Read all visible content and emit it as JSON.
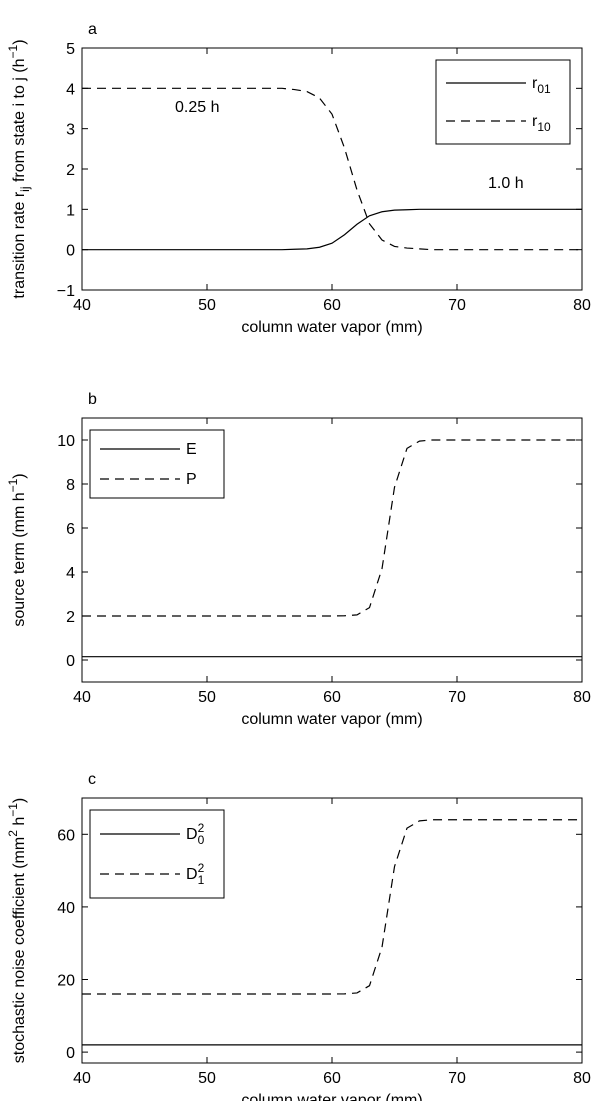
{
  "chart_data": [
    {
      "type": "line",
      "panel_label": "a",
      "xlabel": "column water vapor (mm)",
      "ylabel": [
        {
          "text": "transition rate r"
        },
        {
          "text": "ij",
          "shift": "sub"
        },
        {
          "text": " from state i to j (h"
        },
        {
          "text": "−1",
          "shift": "sup"
        },
        {
          "text": ")"
        }
      ],
      "x": [
        40,
        50,
        55,
        56,
        57,
        58,
        59,
        60,
        61,
        62,
        63,
        64,
        65,
        66,
        67,
        68,
        70,
        80
      ],
      "series": [
        {
          "name": [
            {
              "text": "r"
            },
            {
              "text": "01",
              "shift": "sub"
            }
          ],
          "color": "#000000",
          "dash": "solid",
          "values": [
            0,
            0,
            0,
            0,
            0.01,
            0.02,
            0.06,
            0.16,
            0.37,
            0.63,
            0.84,
            0.94,
            0.98,
            0.99,
            1,
            1,
            1,
            1
          ]
        },
        {
          "name": [
            {
              "text": "r"
            },
            {
              "text": "10",
              "shift": "sub"
            }
          ],
          "color": "#000000",
          "dash": "dashed",
          "values": [
            4,
            4,
            4,
            4,
            3.97,
            3.92,
            3.76,
            3.36,
            2.52,
            1.48,
            0.64,
            0.24,
            0.08,
            0.04,
            0.02,
            0,
            0,
            0
          ]
        }
      ],
      "xlim": [
        40,
        80
      ],
      "ylim": [
        -1,
        5
      ],
      "xticks": [
        40,
        50,
        60,
        70,
        80
      ],
      "yticks": [
        {
          "value": -1,
          "label": "−1"
        },
        0,
        1,
        2,
        3,
        4,
        5
      ],
      "legend": "upper right",
      "annotations": [
        "0.25 h",
        "1.0 h"
      ]
    },
    {
      "type": "line",
      "panel_label": "b",
      "xlabel": "column water vapor (mm)",
      "ylabel": [
        {
          "text": "source term (mm h"
        },
        {
          "text": "−1",
          "shift": "sup"
        },
        {
          "text": ")"
        }
      ],
      "x": [
        40,
        50,
        55,
        56,
        57,
        58,
        59,
        60,
        61,
        62,
        63,
        64,
        65,
        66,
        67,
        68,
        70,
        80
      ],
      "series": [
        {
          "name": [
            {
              "text": "E"
            }
          ],
          "color": "#000000",
          "dash": "solid",
          "values": [
            0.15,
            0.15,
            0.15,
            0.15,
            0.15,
            0.15,
            0.15,
            0.15,
            0.15,
            0.15,
            0.15,
            0.15,
            0.15,
            0.15,
            0.15,
            0.15,
            0.15,
            0.15
          ]
        },
        {
          "name": [
            {
              "text": "P"
            }
          ],
          "color": "#000000",
          "dash": "dashed",
          "values": [
            2,
            2,
            2,
            2,
            2,
            2,
            2,
            2,
            2.01,
            2.05,
            2.38,
            4.15,
            7.85,
            9.62,
            9.95,
            10,
            10,
            10
          ]
        }
      ],
      "xlim": [
        40,
        80
      ],
      "ylim": [
        -1,
        11
      ],
      "xticks": [
        40,
        50,
        60,
        70,
        80
      ],
      "yticks": [
        0,
        2,
        4,
        6,
        8,
        10
      ],
      "legend": "upper left"
    },
    {
      "type": "line",
      "panel_label": "c",
      "xlabel": "column water vapor (mm)",
      "ylabel": [
        {
          "text": "stochastic noise coefficient (mm"
        },
        {
          "text": "2",
          "shift": "sup"
        },
        {
          "text": " h"
        },
        {
          "text": "−1",
          "shift": "sup"
        },
        {
          "text": ")"
        }
      ],
      "x": [
        40,
        50,
        55,
        56,
        57,
        58,
        59,
        60,
        61,
        62,
        63,
        64,
        65,
        66,
        67,
        68,
        70,
        80
      ],
      "series": [
        {
          "name": [
            {
              "text": "D"
            },
            {
              "text": "0",
              "shift": "sub"
            },
            {
              "text": "2",
              "shift": "sup"
            }
          ],
          "color": "#000000",
          "dash": "solid",
          "values": [
            2,
            2,
            2,
            2,
            2,
            2,
            2,
            2,
            2,
            2,
            2,
            2,
            2,
            2,
            2,
            2,
            2,
            2
          ]
        },
        {
          "name": [
            {
              "text": "D"
            },
            {
              "text": "1",
              "shift": "sub"
            },
            {
              "text": "2",
              "shift": "sup"
            }
          ],
          "color": "#000000",
          "dash": "dashed",
          "values": [
            16,
            16,
            16,
            16,
            16,
            16,
            16,
            16,
            16.05,
            16.3,
            18.3,
            28.9,
            51.1,
            61.7,
            63.7,
            64,
            64,
            64
          ]
        }
      ],
      "xlim": [
        40,
        80
      ],
      "ylim": [
        -3,
        70
      ],
      "xticks": [
        40,
        50,
        60,
        70,
        80
      ],
      "yticks": [
        0,
        20,
        40,
        60
      ],
      "legend": "upper left"
    }
  ]
}
